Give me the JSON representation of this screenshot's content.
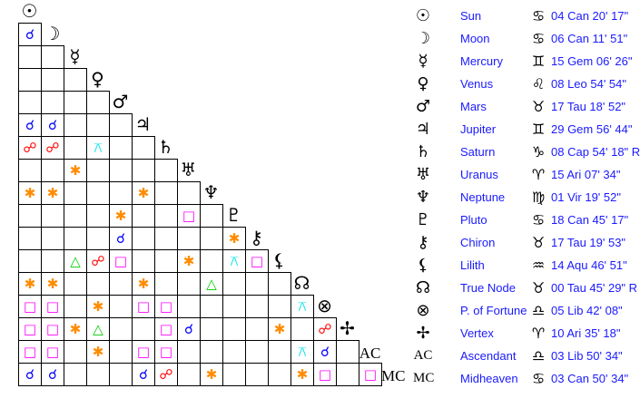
{
  "aspect_styles": {
    "conj": {
      "glyph": "☌",
      "color": "#0000ff",
      "name": "conjunction"
    },
    "opp": {
      "glyph": "☍",
      "color": "#ff0000",
      "name": "opposition"
    },
    "quin": {
      "glyph": "⚻",
      "color": "#00e5ee",
      "name": "quincunx"
    },
    "sext": {
      "glyph": "✱",
      "color": "#ff8c00",
      "name": "sextile"
    },
    "sq": {
      "glyph": "□",
      "color": "#ff00ff",
      "name": "square"
    },
    "tri": {
      "glyph": "△",
      "color": "#00cc00",
      "name": "trine"
    }
  },
  "bodies": [
    {
      "glyph": "☉",
      "name": "Sun",
      "sign": "♋",
      "position": "04 Can 20' 17\""
    },
    {
      "glyph": "☽",
      "name": "Moon",
      "sign": "♋",
      "position": "06 Can 11' 51\""
    },
    {
      "glyph": "☿",
      "name": "Mercury",
      "sign": "♊",
      "position": "15 Gem 06' 26\""
    },
    {
      "glyph": "♀",
      "name": "Venus",
      "sign": "♌",
      "position": "08 Leo 54' 54\""
    },
    {
      "glyph": "♂",
      "name": "Mars",
      "sign": "♉",
      "position": "17 Tau 18' 52\""
    },
    {
      "glyph": "♃",
      "name": "Jupiter",
      "sign": "♊",
      "position": "29 Gem 56' 44\""
    },
    {
      "glyph": "♄",
      "name": "Saturn",
      "sign": "♑",
      "position": "08 Cap 54' 18\" R"
    },
    {
      "glyph": "♅",
      "name": "Uranus",
      "sign": "♈",
      "position": "15 Ari 07' 34\""
    },
    {
      "glyph": "♆",
      "name": "Neptune",
      "sign": "♍",
      "position": "01 Vir 19' 52\""
    },
    {
      "glyph": "♇",
      "name": "Pluto",
      "sign": "♋",
      "position": "18 Can 45' 17\""
    },
    {
      "glyph": "⚷",
      "name": "Chiron",
      "sign": "♉",
      "position": "17 Tau 19' 53\""
    },
    {
      "glyph": "⚸",
      "name": "Lilith",
      "sign": "♒",
      "position": "14 Aqu 46' 51\""
    },
    {
      "glyph": "☊",
      "name": "True Node",
      "sign": "♉",
      "position": "00 Tau 45' 29\" R"
    },
    {
      "glyph": "⊗",
      "name": "P. of Fortune",
      "sign": "♎",
      "position": "05 Lib 42' 08\""
    },
    {
      "glyph": "✢",
      "name": "Vertex",
      "sign": "♈",
      "position": "10 Ari 35' 18\""
    },
    {
      "glyph": "AC",
      "name": "Ascendant",
      "sign": "♎",
      "position": "03 Lib 50' 34\""
    },
    {
      "glyph": "MC",
      "name": "Midheaven",
      "sign": "♋",
      "position": "03 Can 50' 34\""
    }
  ],
  "aspect_grid": [
    [],
    [
      "conj"
    ],
    [
      "",
      ""
    ],
    [
      "",
      "",
      ""
    ],
    [
      "",
      "",
      "",
      ""
    ],
    [
      "conj",
      "conj",
      "",
      "",
      ""
    ],
    [
      "opp",
      "opp",
      "",
      "quin",
      "",
      ""
    ],
    [
      "",
      "",
      "sext",
      "",
      "",
      "",
      ""
    ],
    [
      "sext",
      "sext",
      "",
      "",
      "",
      "sext",
      "",
      ""
    ],
    [
      "",
      "",
      "",
      "",
      "sext",
      "",
      "",
      "sq",
      ""
    ],
    [
      "",
      "",
      "",
      "",
      "conj",
      "",
      "",
      "",
      "",
      "sext"
    ],
    [
      "",
      "",
      "tri",
      "opp",
      "sq",
      "",
      "",
      "sext",
      "",
      "quin",
      "sq"
    ],
    [
      "sext",
      "sext",
      "",
      "",
      "",
      "sext",
      "",
      "",
      "tri",
      "",
      "",
      ""
    ],
    [
      "sq",
      "sq",
      "",
      "sext",
      "",
      "sq",
      "sq",
      "",
      "",
      "",
      "",
      "",
      "quin"
    ],
    [
      "sq",
      "sq",
      "sext",
      "tri",
      "",
      "",
      "sq",
      "conj",
      "",
      "",
      "",
      "sext",
      "",
      "opp"
    ],
    [
      "sq",
      "sq",
      "",
      "sext",
      "",
      "sq",
      "sq",
      "",
      "",
      "",
      "",
      "",
      "quin",
      "conj",
      ""
    ],
    [
      "conj",
      "conj",
      "",
      "",
      "",
      "conj",
      "opp",
      "",
      "sext",
      "",
      "",
      "",
      "sext",
      "sq",
      "",
      "sq"
    ]
  ]
}
